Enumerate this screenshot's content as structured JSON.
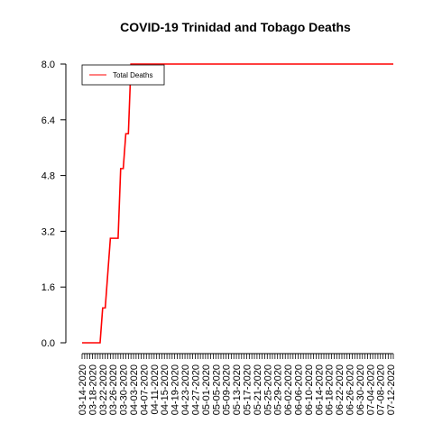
{
  "chart_data": {
    "type": "line",
    "title": "COVID-19 Trinidad and Tobago Deaths",
    "xlabel": "",
    "ylabel": "",
    "ylim": [
      0,
      8
    ],
    "yticks": [
      "0.0",
      "1.6",
      "3.2",
      "4.8",
      "6.4",
      "8.0"
    ],
    "x_start": "03-14-2020",
    "x_end": "07-13-2020",
    "xtick_labels": [
      "03-14-2020",
      "03-18-2020",
      "03-22-2020",
      "03-26-2020",
      "03-30-2020",
      "04-03-2020",
      "04-07-2020",
      "04-11-2020",
      "04-15-2020",
      "04-19-2020",
      "04-23-2020",
      "04-27-2020",
      "05-01-2020",
      "05-05-2020",
      "05-09-2020",
      "05-13-2020",
      "05-17-2020",
      "05-21-2020",
      "05-25-2020",
      "05-29-2020",
      "06-02-2020",
      "06-06-2020",
      "06-10-2020",
      "06-14-2020",
      "06-18-2020",
      "06-22-2020",
      "06-26-2020",
      "06-30-2020",
      "07-04-2020",
      "07-08-2020",
      "07-12-2020"
    ],
    "legend": {
      "position": "top-left",
      "entries": [
        {
          "label": "Total Deaths",
          "color": "#ff0000"
        }
      ]
    },
    "grid": false,
    "series": [
      {
        "name": "Total Deaths",
        "color": "#ff0000",
        "points": [
          [
            "03-14-2020",
            0
          ],
          [
            "03-21-2020",
            0
          ],
          [
            "03-22-2020",
            1
          ],
          [
            "03-23-2020",
            1
          ],
          [
            "03-25-2020",
            3
          ],
          [
            "03-28-2020",
            3
          ],
          [
            "03-29-2020",
            5
          ],
          [
            "03-30-2020",
            5
          ],
          [
            "03-31-2020",
            6
          ],
          [
            "04-01-2020",
            6
          ],
          [
            "04-02-2020",
            8
          ],
          [
            "07-13-2020",
            8
          ]
        ]
      }
    ]
  }
}
